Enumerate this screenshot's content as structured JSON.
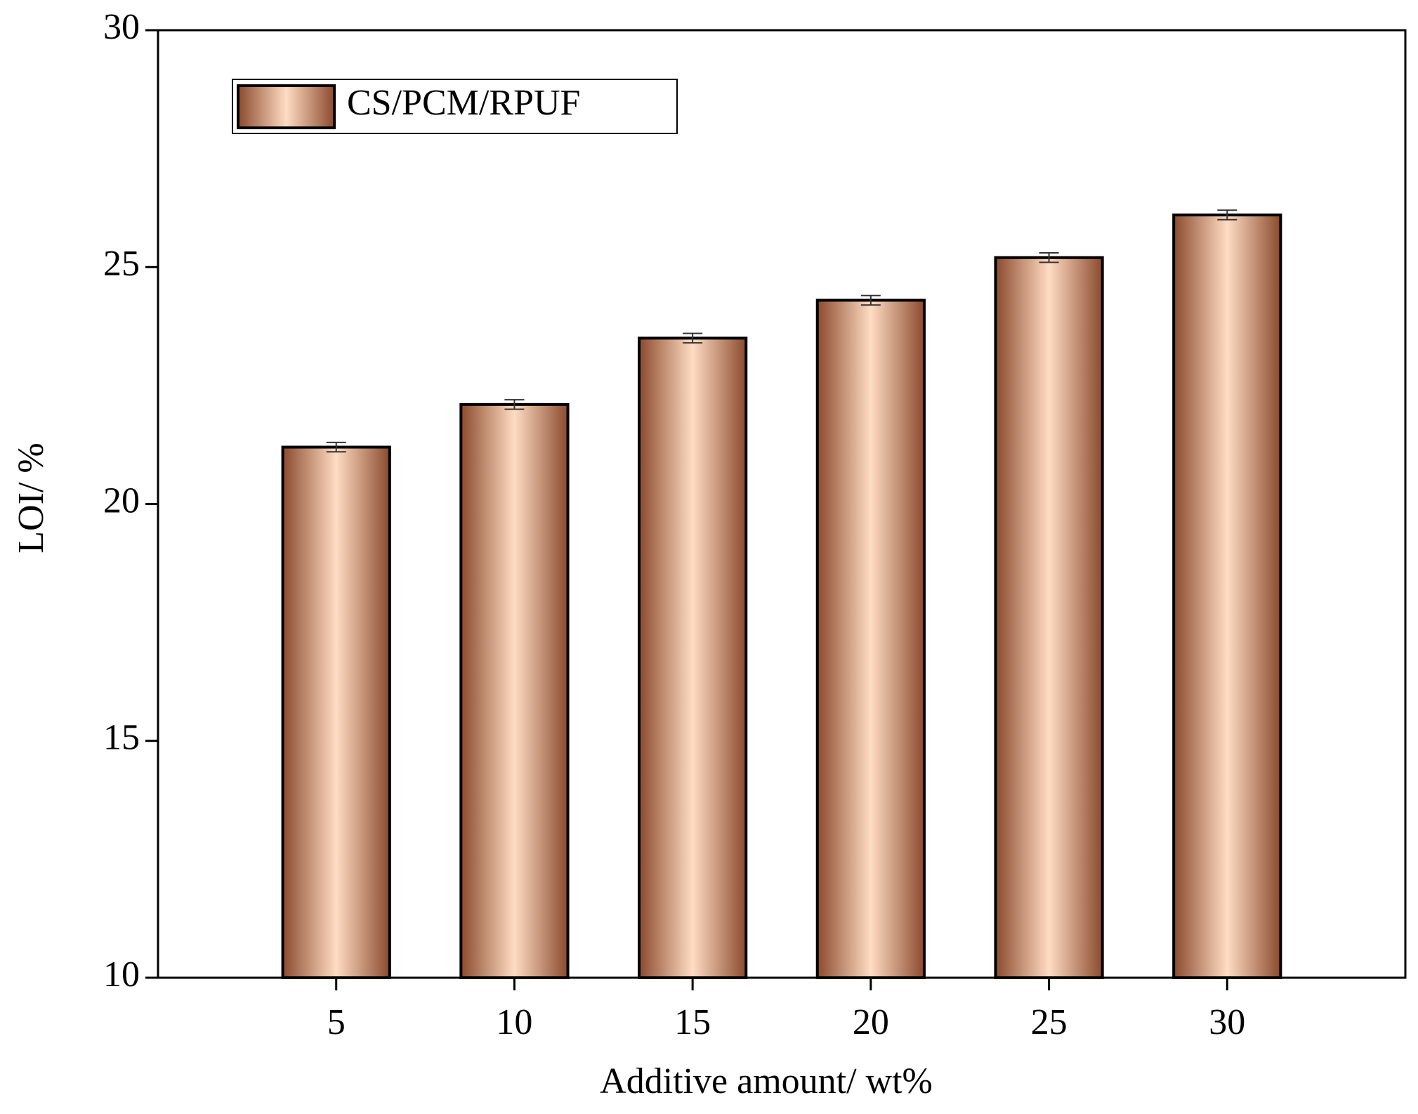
{
  "chart_data": {
    "type": "bar",
    "x_label": "Additive amount/ wt%",
    "y_label": "LOI/ %",
    "x": [
      5,
      10,
      15,
      20,
      25,
      30
    ],
    "series": [
      {
        "name": "CS/PCM/RPUF",
        "color": "#8b4a2e",
        "values": [
          21.2,
          22.1,
          23.5,
          24.3,
          25.2,
          26.1
        ],
        "errors": [
          0.1,
          0.1,
          0.1,
          0.1,
          0.1,
          0.1
        ]
      }
    ],
    "highlight_color": "#ffdcc2",
    "bar_width": 3,
    "xlim": [
      0,
      35
    ],
    "xticks": [
      5,
      10,
      15,
      20,
      25,
      30
    ],
    "ylim": [
      10,
      30
    ],
    "yticks": [
      10,
      15,
      20,
      25,
      30
    ],
    "grid": false,
    "legend": "upper left"
  }
}
